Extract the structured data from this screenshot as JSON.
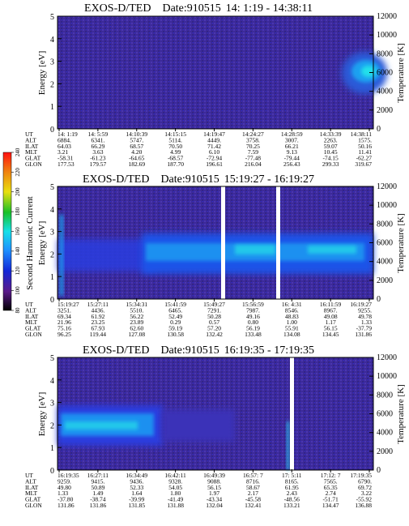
{
  "colorbar": {
    "label": "Second Harmonic Current",
    "ticks": [
      "80",
      "100",
      "120",
      "140",
      "160",
      "180",
      "200",
      "220",
      "240"
    ]
  },
  "chart_data": [
    {
      "type": "heatmap",
      "title": "EXOS-D/TED",
      "date_label": "Date:910515",
      "time_range": "14: 1:19 - 14:38:11",
      "ylabel": "Energy [eV]",
      "ylabel_right": "Temperature [K]",
      "ylim": [
        0,
        5
      ],
      "yticks": [
        "0",
        "1",
        "2",
        "3",
        "4",
        "5"
      ],
      "ylim_right": [
        0,
        12000
      ],
      "yticks_right": [
        "0",
        "2000",
        "4000",
        "6000",
        "8000",
        "10000",
        "12000"
      ],
      "ephemeris": {
        "labels": [
          "UT",
          "ALT",
          "ILAT",
          "MLT",
          "GLAT",
          "GLON"
        ],
        "columns": [
          [
            "14: 1:19",
            "6884.",
            "64.03",
            "3.21",
            "-58.31",
            "177.53"
          ],
          [
            "14: 5:59",
            "6341.",
            "66.29",
            "3.63",
            "-61.23",
            "179.57"
          ],
          [
            "14:10:39",
            "5747.",
            "68.57",
            "4.20",
            "-64.65",
            "182.69"
          ],
          [
            "14:15:15",
            "5114.",
            "70.50",
            "4.99",
            "-68.57",
            "187.70"
          ],
          [
            "14:19:47",
            "4449.",
            "71.42",
            "6.10",
            "-72.94",
            "196.61"
          ],
          [
            "14:24:27",
            "3758.",
            "70.25",
            "7.59",
            "-77.48",
            "216.04"
          ],
          [
            "14:28:59",
            "3007.",
            "66.21",
            "9.13",
            "-79.44",
            "256.43"
          ],
          [
            "14:33:39",
            "2263.",
            "59.07",
            "10.45",
            "-74.15",
            "299.33"
          ],
          [
            "14:38:11",
            "1575.",
            "50.16",
            "11.41",
            "-62.27",
            "319.67"
          ]
        ]
      }
    },
    {
      "type": "heatmap",
      "title": "EXOS-D/TED",
      "date_label": "Date:910515",
      "time_range": "15:19:27 - 16:19:27",
      "ylabel": "Energy [eV]",
      "ylabel_right": "Temperature [K]",
      "ylim": [
        0,
        5
      ],
      "yticks": [
        "0",
        "1",
        "2",
        "3",
        "4",
        "5"
      ],
      "ylim_right": [
        0,
        12000
      ],
      "yticks_right": [
        "0",
        "2000",
        "4000",
        "6000",
        "8000",
        "10000",
        "12000"
      ],
      "ephemeris": {
        "labels": [
          "UT",
          "ALT",
          "ILAT",
          "MLT",
          "GLAT",
          "GLON"
        ],
        "columns": [
          [
            "15:19:27",
            "3251.",
            "69.34",
            "21.96",
            "75.16",
            "96.25"
          ],
          [
            "15:27:11",
            "4436.",
            "61.92",
            "23.25",
            "67.93",
            "119.44"
          ],
          [
            "15:34:31",
            "5510.",
            "56.22",
            "23.89",
            "62.60",
            "127.08"
          ],
          [
            "15:41:59",
            "6465.",
            "52.49",
            "0.29",
            "59.19",
            "130.58"
          ],
          [
            "15:49:27",
            "7291.",
            "50.28",
            "0.57",
            "57.20",
            "132.42"
          ],
          [
            "15:56:59",
            "7987.",
            "49.16",
            "0.80",
            "56.19",
            "133.48"
          ],
          [
            "16: 4:31",
            "8546.",
            "48.83",
            "1.00",
            "55.91",
            "134.08"
          ],
          [
            "16:11:59",
            "8967.",
            "49.08",
            "1.17",
            "56.15",
            "134.45"
          ],
          [
            "16:19:27",
            "9255.",
            "49.78",
            "1.33",
            "-37.79",
            "131.86"
          ]
        ]
      }
    },
    {
      "type": "heatmap",
      "title": "EXOS-D/TED",
      "date_label": "Date:910515",
      "time_range": "16:19:35 - 17:19:35",
      "ylabel": "Energy [eV]",
      "ylabel_right": "Temperature [K]",
      "ylim": [
        0,
        5
      ],
      "yticks": [
        "0",
        "1",
        "2",
        "3",
        "4",
        "5"
      ],
      "ylim_right": [
        0,
        12000
      ],
      "yticks_right": [
        "0",
        "2000",
        "4000",
        "6000",
        "8000",
        "10000",
        "12000"
      ],
      "ephemeris": {
        "labels": [
          "UT",
          "ALT",
          "ILAT",
          "MLT",
          "GLAT",
          "GLON"
        ],
        "columns": [
          [
            "16:19:35",
            "9259.",
            "49.80",
            "1.33",
            "-37.80",
            "131.86"
          ],
          [
            "16:27:11",
            "9415.",
            "50.89",
            "1.49",
            "-38.74",
            "131.86"
          ],
          [
            "16:34:49",
            "9436.",
            "52.33",
            "1.64",
            "-39.99",
            "131.85"
          ],
          [
            "16:42:11",
            "9328.",
            "54.05",
            "1.80",
            "-41.49",
            "131.88"
          ],
          [
            "16:49:39",
            "9088.",
            "56.15",
            "1.97",
            "-43.34",
            "132.04"
          ],
          [
            "16:57: 7",
            "8716.",
            "58.67",
            "2.17",
            "-45.58",
            "132.41"
          ],
          [
            "17: 5:11",
            "8165.",
            "61.95",
            "2.43",
            "-48.56",
            "133.21"
          ],
          [
            "17:12: 7",
            "7565.",
            "65.35",
            "2.74",
            "-51.71",
            "134.47"
          ],
          [
            "17:19:35",
            "6790.",
            "69.72",
            "3.22",
            "-55.92",
            "136.88"
          ]
        ]
      }
    }
  ]
}
